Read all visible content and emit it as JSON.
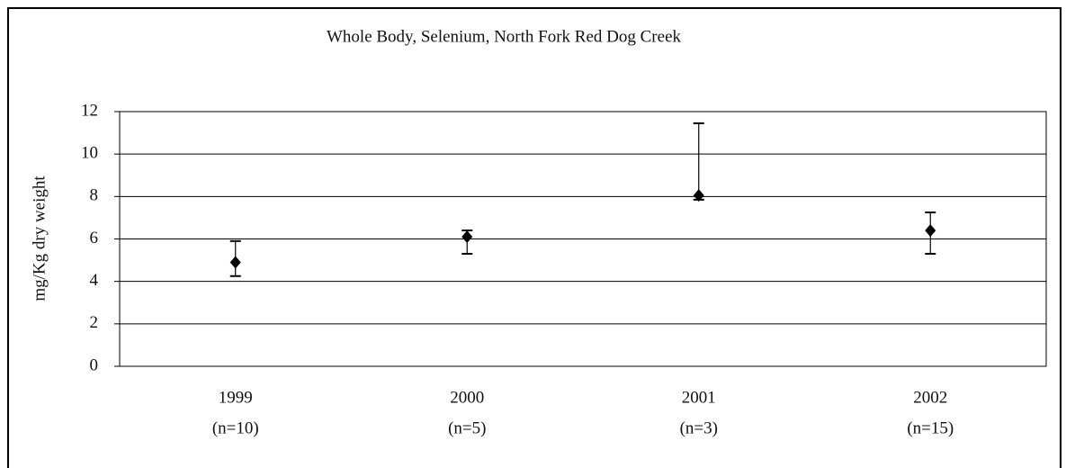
{
  "chart_data": {
    "type": "errorpoint",
    "title": "Whole Body, Selenium, North Fork Red Dog Creek",
    "y_label": "mg/Kg dry weight",
    "categories": [
      "1999",
      "2000",
      "2001",
      "2002"
    ],
    "sample_sizes": [
      "(n=10)",
      "(n=5)",
      "(n=3)",
      "(n=15)"
    ],
    "series": [
      {
        "color": "#000000",
        "values": [
          4.9,
          6.1,
          8.05,
          6.4
        ],
        "lower": [
          4.25,
          5.3,
          7.85,
          5.3
        ],
        "upper": [
          5.9,
          6.4,
          11.45,
          7.25
        ]
      }
    ],
    "ylim": [
      0,
      12
    ],
    "yticks": [
      0,
      2,
      4,
      6,
      8,
      10,
      12
    ],
    "grid": true
  }
}
